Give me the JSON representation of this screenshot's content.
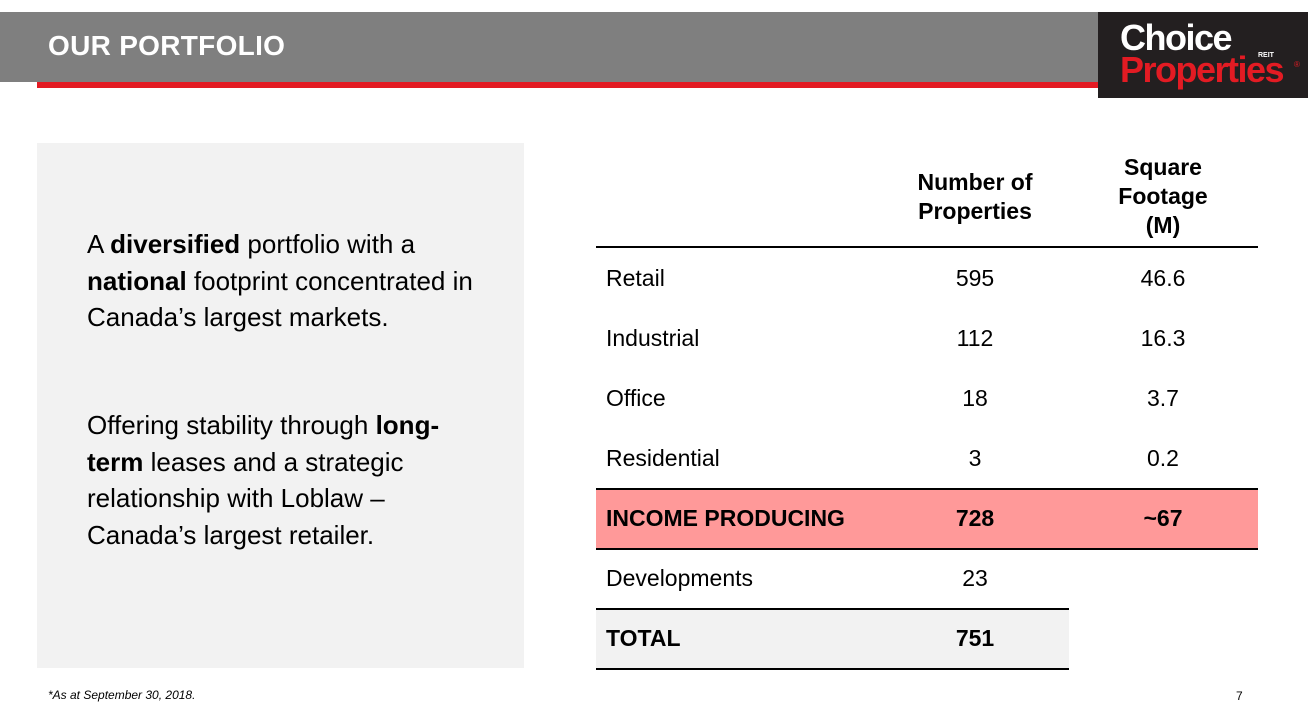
{
  "header": {
    "title": "OUR PORTFOLIO"
  },
  "logo": {
    "line1": "Choice",
    "line2": "Properties",
    "reit": "REIT",
    "reg": "®"
  },
  "left_panel": {
    "p1": [
      {
        "t": "A ",
        "b": false
      },
      {
        "t": "diversified",
        "b": true
      },
      {
        "t": " portfolio with a ",
        "b": false
      },
      {
        "t": "national",
        "b": true
      },
      {
        "t": " footprint concentrated in Canada’s largest markets.",
        "b": false
      }
    ],
    "p2": [
      {
        "t": "Offering stability through ",
        "b": false
      },
      {
        "t": "long-term",
        "b": true
      },
      {
        "t": " leases and a strategic relationship with Loblaw – Canada’s largest retailer.",
        "b": false
      }
    ]
  },
  "table": {
    "col_num_header": "Number of Properties",
    "col_sq_header": "Square Footage (M)",
    "rows": [
      {
        "label": "Retail",
        "num": "595",
        "sq": "46.6"
      },
      {
        "label": "Industrial",
        "num": "112",
        "sq": "16.3"
      },
      {
        "label": "Office",
        "num": "18",
        "sq": "3.7"
      },
      {
        "label": "Residential",
        "num": "3",
        "sq": "0.2"
      },
      {
        "label": "INCOME PRODUCING",
        "num": "728",
        "sq": "~67"
      },
      {
        "label": "Developments",
        "num": "23",
        "sq": ""
      },
      {
        "label": "TOTAL",
        "num": "751",
        "sq": ""
      }
    ]
  },
  "footer": {
    "note": "*As at September 30, 2018.",
    "page": "7"
  },
  "colors": {
    "brand_red": "#e31b23",
    "highlight": "#ff9999",
    "header_gray": "#7f7f7f"
  }
}
